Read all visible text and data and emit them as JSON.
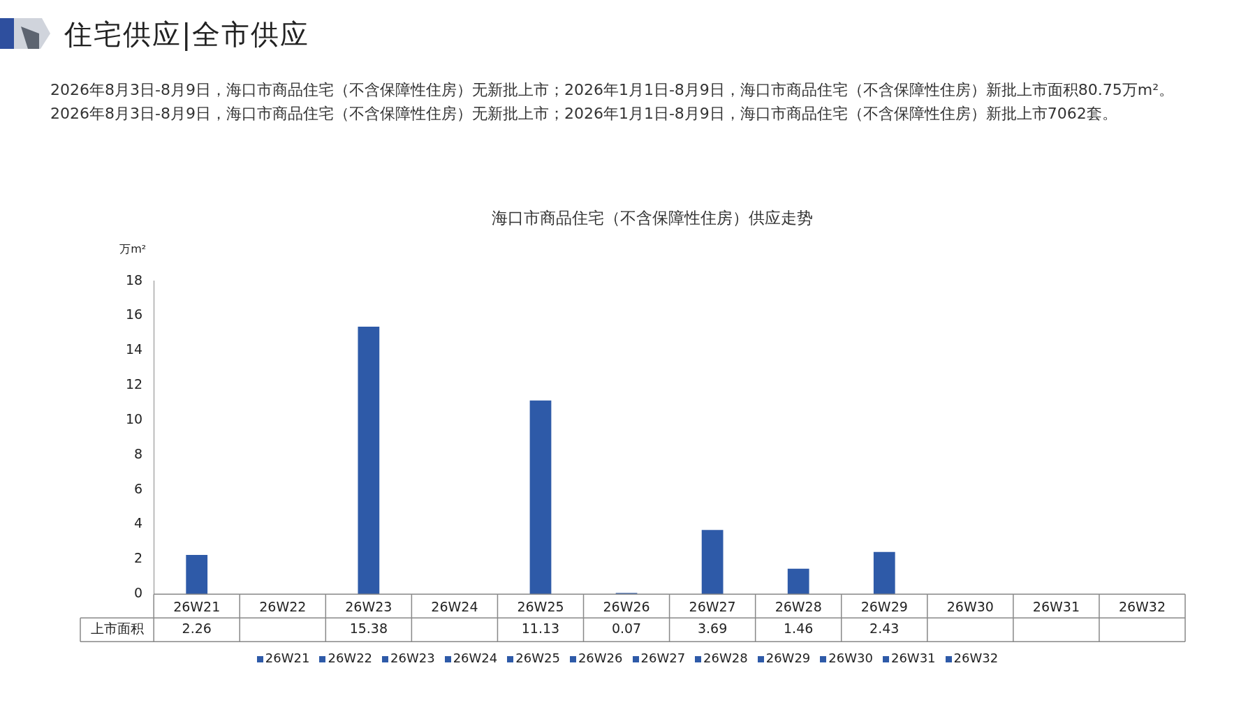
{
  "chart_data": {
    "type": "bar",
    "title": "海口市商品住宅（不含保障性住房）供应走势",
    "ylabel": "万m²",
    "annotations": [
      "住宅供应|全市供应",
      "2026年8月3日-8月9日，海口市商品住宅（不含保障性住房）无新批上市；2026年1月1日-8月9日，海口市商品住宅（不含保障性住房）新批上市面积80.75万m²。2026年8月3日-8月9日，海口市商品住宅（不含保障性住房）无新批上市；2026年1月1日-8月9日，海口市商品住宅（不含保障性住房）新批上市7062套。"
    ],
    "categories": [
      "26W21",
      "26W22",
      "26W23",
      "26W24",
      "26W25",
      "26W26",
      "26W27",
      "26W28",
      "26W29",
      "26W30",
      "26W31",
      "26W32"
    ],
    "series": [
      {
        "name": "上市面积",
        "color": "#2e5aa8",
        "values": [
          2.26,
          null,
          15.38,
          null,
          11.13,
          0.07,
          3.69,
          1.46,
          2.43,
          null,
          null,
          null
        ]
      }
    ],
    "ylim": [
      0,
      18
    ],
    "yticks": [
      0,
      2,
      4,
      6,
      8,
      10,
      12,
      14,
      16,
      18
    ],
    "grid": false,
    "legend": "bottom",
    "data_labels": true
  }
}
